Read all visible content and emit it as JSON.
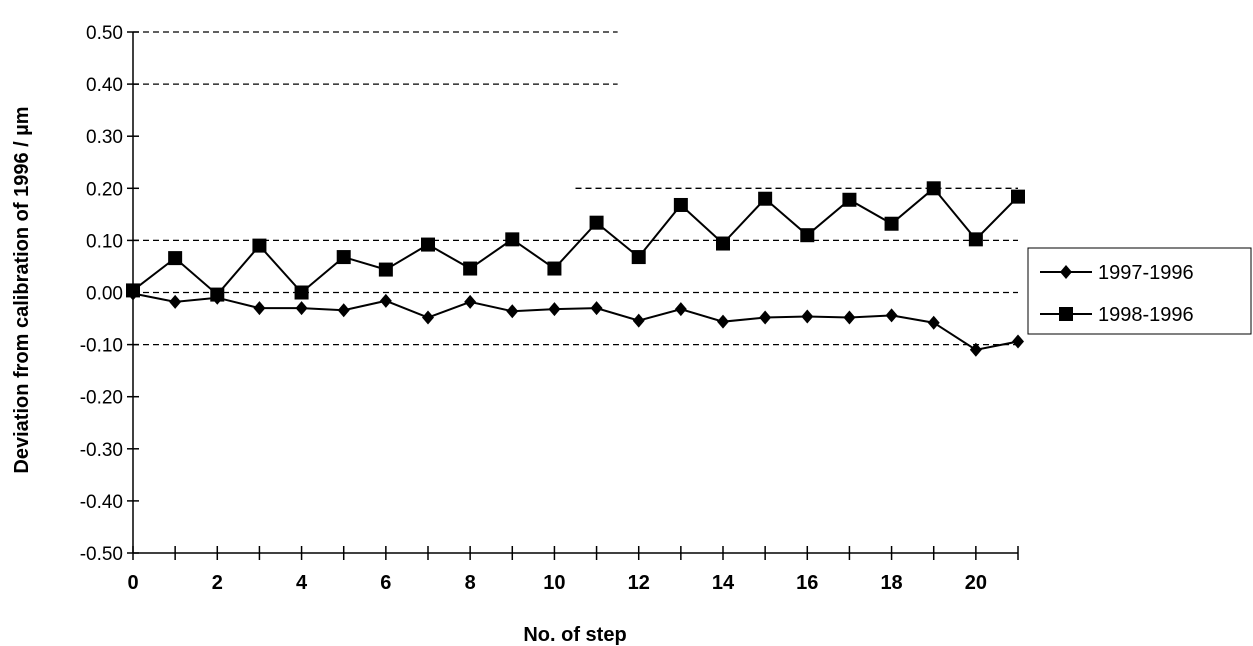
{
  "chart_data": {
    "type": "line",
    "title": "",
    "xlabel": "No. of step",
    "ylabel": "Deviation from calibration of 1996  / µm",
    "xlim": [
      0,
      21
    ],
    "ylim": [
      -0.5,
      0.5
    ],
    "x": [
      0,
      1,
      2,
      3,
      4,
      5,
      6,
      7,
      8,
      9,
      10,
      11,
      12,
      13,
      14,
      15,
      16,
      17,
      18,
      19,
      20,
      21
    ],
    "x_tick_labels": [
      "0",
      "2",
      "4",
      "6",
      "8",
      "10",
      "12",
      "14",
      "16",
      "18",
      "20"
    ],
    "x_tick_values": [
      0,
      2,
      4,
      6,
      8,
      10,
      12,
      14,
      16,
      18,
      20
    ],
    "y_tick_labels": [
      "0.50",
      "0.40",
      "0.30",
      "0.20",
      "0.10",
      "0.00",
      "-0.10",
      "-0.20",
      "-0.30",
      "-0.40",
      "-0.50"
    ],
    "y_tick_values": [
      0.5,
      0.4,
      0.3,
      0.2,
      0.1,
      0.0,
      -0.1,
      -0.2,
      -0.3,
      -0.4,
      -0.5
    ],
    "series": [
      {
        "name": "1997-1996",
        "marker": "diamond",
        "color": "#000000",
        "values": [
          -0.002,
          -0.018,
          -0.01,
          -0.03,
          -0.03,
          -0.034,
          -0.016,
          -0.048,
          -0.018,
          -0.036,
          -0.032,
          -0.03,
          -0.054,
          -0.032,
          -0.056,
          -0.048,
          -0.046,
          -0.048,
          -0.044,
          -0.058,
          -0.11,
          -0.094
        ]
      },
      {
        "name": "1998-1996",
        "marker": "square",
        "color": "#000000",
        "values": [
          0.004,
          0.066,
          -0.004,
          0.09,
          0.0,
          0.068,
          0.044,
          0.092,
          0.046,
          0.102,
          0.046,
          0.134,
          0.068,
          0.168,
          0.094,
          0.18,
          0.11,
          0.178,
          0.132,
          0.2,
          0.102,
          0.184
        ]
      }
    ],
    "reference_lines": [
      {
        "y": 0.5,
        "x_range": [
          0,
          11.5
        ]
      },
      {
        "y": 0.4,
        "x_range": [
          0,
          11.5
        ]
      },
      {
        "y": 0.2,
        "x_range": [
          10.5,
          21
        ]
      },
      {
        "y": 0.1,
        "x_range": [
          0,
          21
        ]
      },
      {
        "y": 0.0,
        "x_range": [
          0,
          21
        ]
      },
      {
        "y": -0.1,
        "x_range": [
          0,
          21
        ]
      }
    ],
    "legend_position": "right",
    "grid": false
  }
}
